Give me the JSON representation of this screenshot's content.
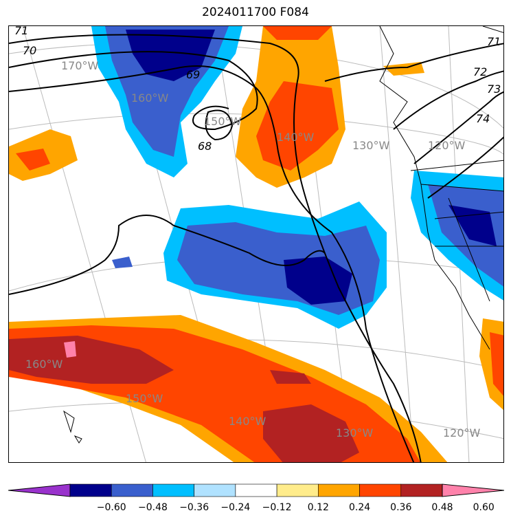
{
  "title": "2024011700 F084",
  "map": {
    "longitude_labels": [
      "170°W",
      "160°W",
      "150°W",
      "140°W",
      "130°W",
      "120°W",
      "160°W",
      "150°W",
      "140°W",
      "130°W",
      "120°W"
    ],
    "contour_labels": [
      "71",
      "70",
      "69",
      "68",
      "71",
      "72",
      "73",
      "74"
    ]
  },
  "colorbar": {
    "tick_labels": [
      "−0.60",
      "−0.48",
      "−0.36",
      "−0.24",
      "−0.12",
      "0.12",
      "0.24",
      "0.36",
      "0.48",
      "0.60"
    ],
    "colors": [
      "#9932cc",
      "#00008b",
      "#3a5fcd",
      "#00bfff",
      "#b0e2ff",
      "#ffffff",
      "#ffec8b",
      "#ffa500",
      "#ff4500",
      "#b22222",
      "#ff82ab"
    ]
  }
}
